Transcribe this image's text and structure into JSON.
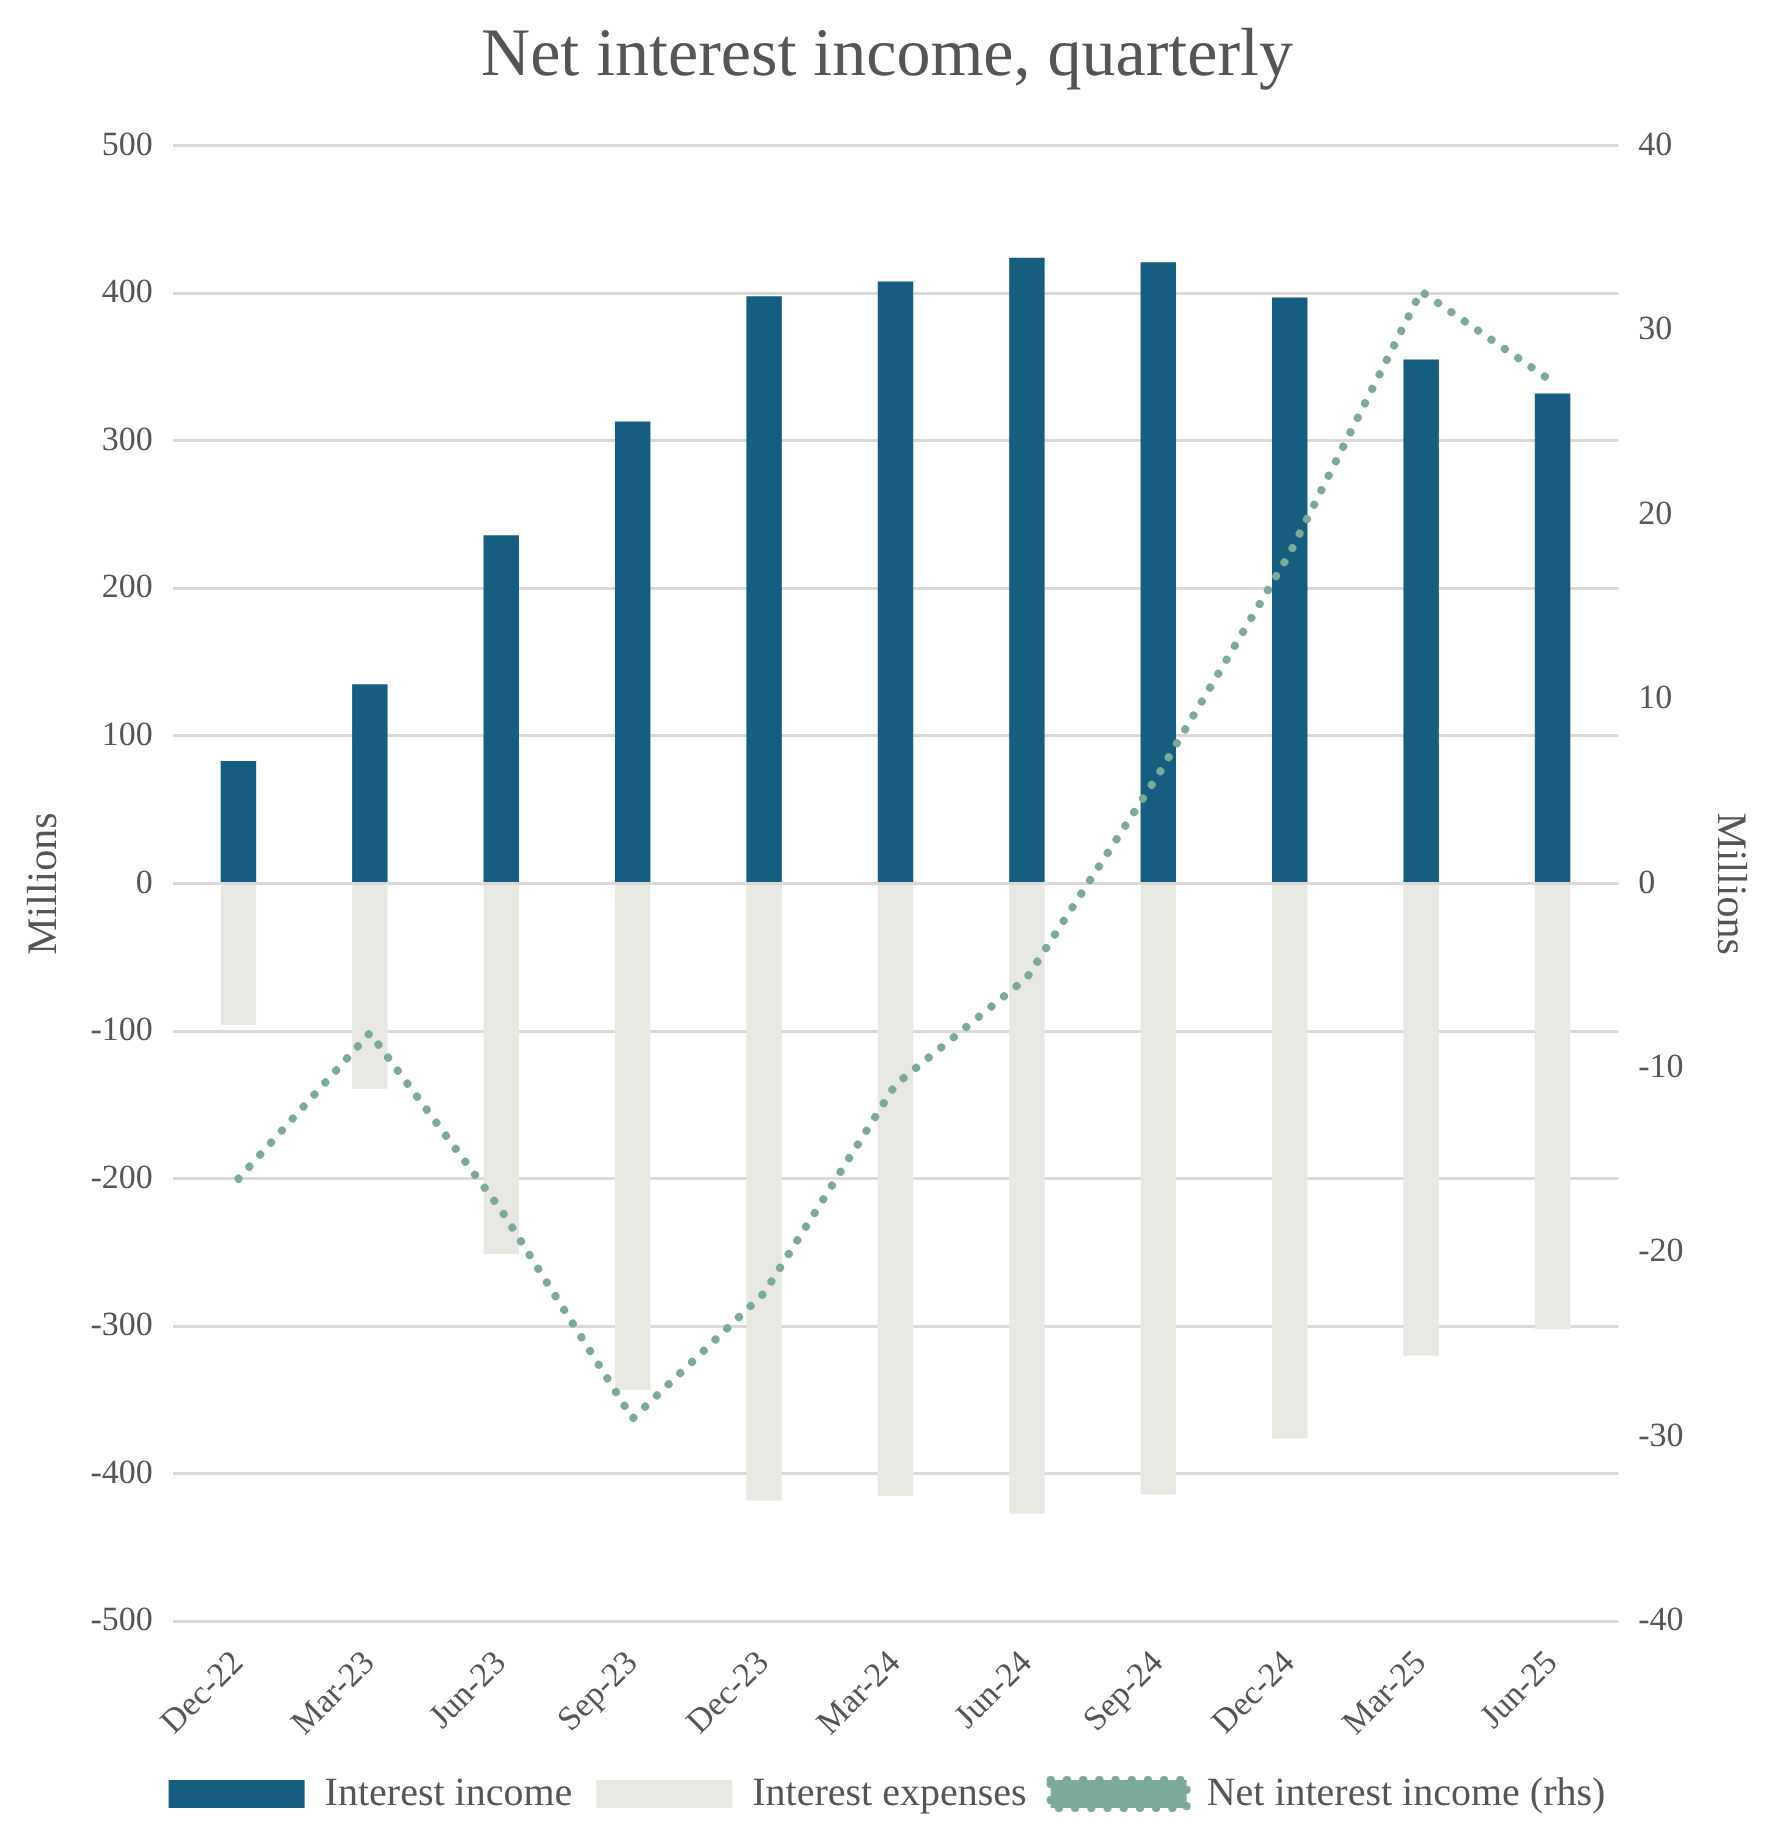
{
  "chart_data": {
    "type": "bar",
    "title": "Net interest income, quarterly",
    "ylabel": "Millions",
    "y2label": "Millions",
    "categories": [
      "Dec-22",
      "Mar-23",
      "Jun-23",
      "Sep-23",
      "Dec-23",
      "Mar-24",
      "Jun-24",
      "Sep-24",
      "Dec-24",
      "Mar-25",
      "Jun-25"
    ],
    "series": [
      {
        "name": "Interest income",
        "color": "#165e80",
        "values": [
          83,
          135,
          236,
          313,
          398,
          408,
          424,
          421,
          397,
          355,
          332
        ]
      },
      {
        "name": "Interest expenses",
        "color": "#e8e8e2",
        "values": [
          -96,
          -139,
          -251,
          -343,
          -418,
          -415,
          -427,
          -414,
          -376,
          -320,
          -302
        ]
      },
      {
        "name": "Net interest income (rhs)",
        "type": "line",
        "axis": "y2",
        "color": "#7ba99a",
        "line_style": "dotted",
        "values": [
          -16,
          -8.1,
          -17.7,
          -29,
          -22.2,
          -10.9,
          -5.1,
          5.9,
          17.9,
          32.1,
          27.2
        ]
      }
    ],
    "stacked": true,
    "ylim": [
      -500,
      500
    ],
    "yticks": [
      -500,
      -400,
      -300,
      -200,
      -100,
      0,
      100,
      200,
      300,
      400,
      500
    ],
    "y2lim": [
      -40,
      40
    ],
    "y2ticks": [
      -40,
      -30,
      -20,
      -10,
      0,
      10,
      20,
      30,
      40
    ],
    "grid": "y",
    "legend": "bottom",
    "marker": "none"
  }
}
